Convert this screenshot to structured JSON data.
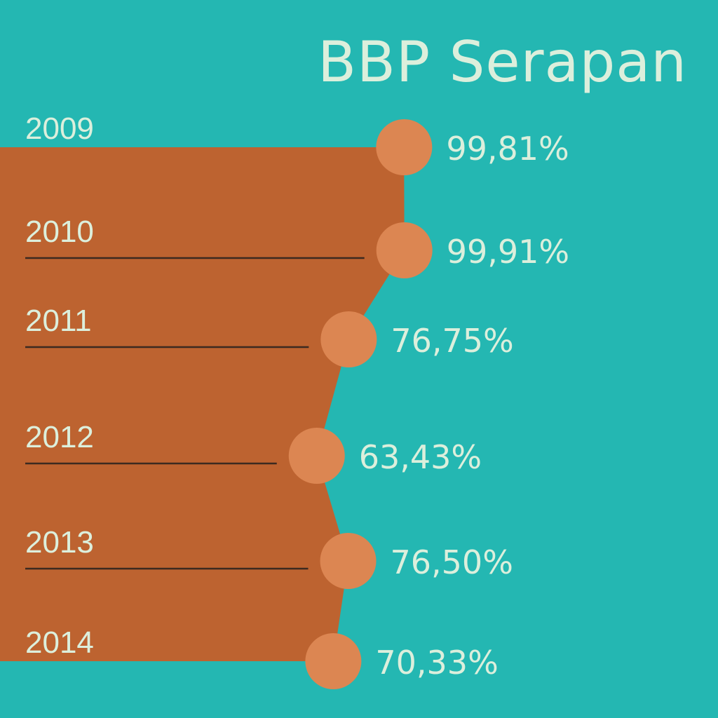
{
  "title": "BBP Serapan",
  "colors": {
    "background": "#24b7b2",
    "area": "#bd6330",
    "marker": "#dc8652",
    "text": "#dcefdc",
    "rule": "#3c2a20"
  },
  "chart_data": {
    "type": "area",
    "orientation": "horizontal",
    "title": "BBP Serapan",
    "categories": [
      "2009",
      "2010",
      "2011",
      "2012",
      "2013",
      "2014"
    ],
    "values": [
      99.81,
      99.91,
      76.75,
      63.43,
      76.5,
      70.33
    ],
    "value_labels": [
      "99,81%",
      "99,91%",
      "76,75%",
      "63,43%",
      "76,50%",
      "70,33%"
    ],
    "unit": "%",
    "grid": false,
    "legend": "none"
  }
}
